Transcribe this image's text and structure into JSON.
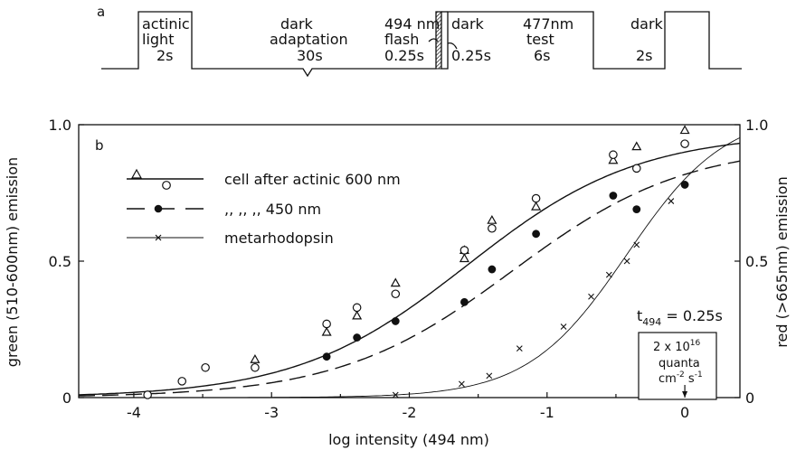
{
  "panel_a": {
    "label": "a",
    "segments": [
      {
        "top": "actinic",
        "mid": "light",
        "bottom": "2s"
      },
      {
        "top": "dark",
        "mid": "adaptation",
        "bottom": "30s"
      },
      {
        "top": "494 nm",
        "mid": "flash",
        "bottom": "0.25s"
      },
      {
        "top": "dark",
        "mid": "",
        "bottom": "0.25s"
      },
      {
        "top": "477nm",
        "mid": "test",
        "bottom": "6s"
      },
      {
        "top": "dark",
        "mid": "",
        "bottom": "2s"
      }
    ]
  },
  "chart_data": {
    "type": "scatter",
    "panel_label": "b",
    "xlabel": "log intensity  (494 nm)",
    "ylabel_left": "green (510-600nm) emission",
    "ylabel_right": "red (>665nm) emission",
    "xlim": [
      -4.4,
      0.4
    ],
    "ylim": [
      0,
      1.0
    ],
    "x_ticks": [
      -4,
      -3,
      -2,
      -1,
      0
    ],
    "x_tick_labels": [
      "-4",
      "-3",
      "-2",
      "-1",
      "0"
    ],
    "y_ticks": [
      0,
      0.5,
      1.0
    ],
    "y_tick_labels": [
      "0",
      "0.5",
      "1.0"
    ],
    "y_right_tick_labels": [
      "0",
      "0.5",
      "1.0"
    ],
    "legend": [
      {
        "text": "cell after actinic 600 nm",
        "markers": [
          "triangle",
          "circle-open"
        ],
        "line": "solid"
      },
      {
        "text": ",,        ,,          ,,        450 nm",
        "markers": [
          "circle-filled"
        ],
        "line": "dashed"
      },
      {
        "text": "metarhodopsin",
        "markers": [
          "cross"
        ],
        "line": "thin"
      }
    ],
    "series": [
      {
        "name": "cell after actinic 600 nm",
        "marker": "triangle",
        "x": [
          -3.12,
          -2.6,
          -2.38,
          -2.1,
          -1.6,
          -1.6,
          -1.4,
          -1.08,
          -0.52,
          -0.35,
          0.0
        ],
        "y": [
          0.14,
          0.24,
          0.3,
          0.42,
          0.51,
          0.54,
          0.65,
          0.7,
          0.87,
          0.92,
          0.98
        ]
      },
      {
        "name": "cell after actinic 600 nm",
        "marker": "circle-open",
        "x": [
          -3.9,
          -3.65,
          -3.48,
          -3.12,
          -2.6,
          -2.38,
          -2.1,
          -1.6,
          -1.4,
          -1.08,
          -0.52,
          -0.35,
          0.0
        ],
        "y": [
          0.01,
          0.06,
          0.11,
          0.11,
          0.27,
          0.33,
          0.38,
          0.54,
          0.62,
          0.73,
          0.89,
          0.84,
          0.93
        ]
      },
      {
        "name": "450 nm",
        "marker": "circle-filled",
        "x": [
          -2.6,
          -2.38,
          -2.1,
          -1.6,
          -1.4,
          -1.08,
          -0.52,
          -0.35,
          0.0
        ],
        "y": [
          0.15,
          0.22,
          0.28,
          0.35,
          0.47,
          0.6,
          0.74,
          0.69,
          0.78
        ]
      },
      {
        "name": "metarhodopsin",
        "marker": "cross",
        "x": [
          -2.1,
          -1.62,
          -1.42,
          -1.2,
          -0.88,
          -0.68,
          -0.55,
          -0.42,
          -0.35,
          -0.1
        ],
        "y": [
          0.01,
          0.05,
          0.08,
          0.18,
          0.26,
          0.37,
          0.45,
          0.5,
          0.56,
          0.72
        ]
      }
    ],
    "annotation_time": {
      "main": "t",
      "sub": "494",
      "rest": " = 0.25s"
    },
    "annotation_box": {
      "line1a": "2 x 10",
      "line1b": "16",
      "line2": "quanta",
      "line3a": "cm",
      "line3b": "-2",
      "line3c": " s",
      "line3d": "-1"
    },
    "arrow_at_x": 0.0
  }
}
